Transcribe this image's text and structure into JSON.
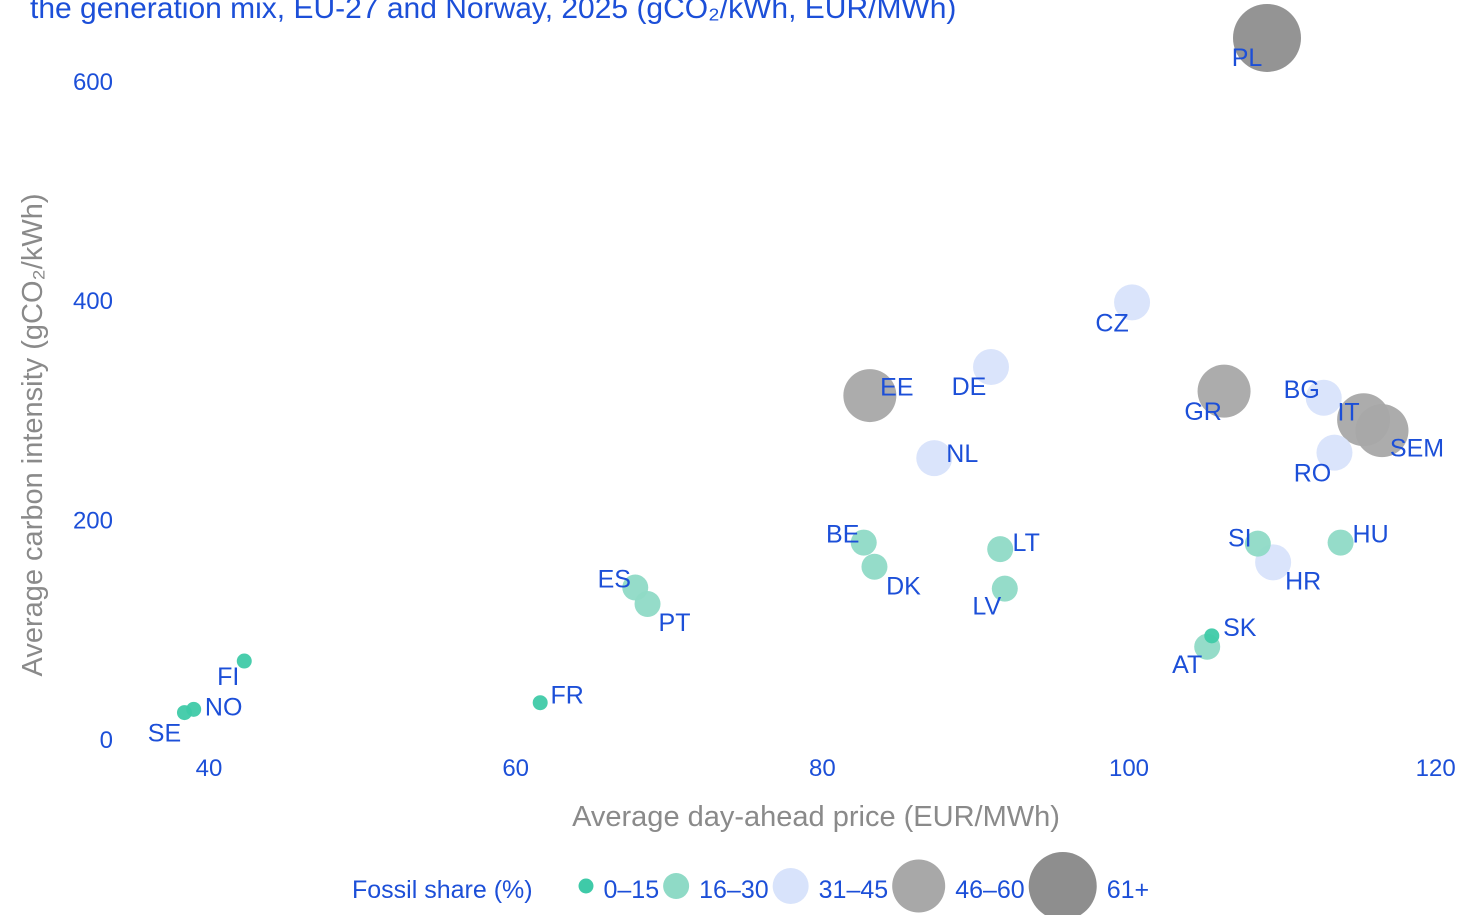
{
  "chart_data": {
    "type": "scatter",
    "title": "the generation mix, EU-27 and Norway, 2025 (gCO₂/kWh, EUR/MWh)",
    "x_label": "Average day-ahead price (EUR/MWh)",
    "y_label": "Average carbon intensity (gCO₂/kWh)",
    "legend_title": "Fossil share (%)",
    "xlim": [
      34,
      121
    ],
    "ylim": [
      -10,
      660
    ],
    "xticks": [
      40,
      60,
      80,
      100,
      120
    ],
    "yticks": [
      0,
      200,
      400,
      600
    ],
    "series": [
      {
        "name": "0–15",
        "color": "#3fcaa8",
        "labels": [
          "FI",
          "NO",
          "SE",
          "FR",
          "SK"
        ],
        "x": [
          42.3,
          39.0,
          38.4,
          61.6,
          105.4
        ],
        "values": [
          72,
          28,
          25,
          34,
          95
        ]
      },
      {
        "name": "16–30",
        "color": "#8fdac6",
        "labels": [
          "ES",
          "PT",
          "BE",
          "DK",
          "LT",
          "LV",
          "AT",
          "SI",
          "HU"
        ],
        "x": [
          67.8,
          68.6,
          82.7,
          83.4,
          91.6,
          91.9,
          105.1,
          108.4,
          113.8
        ],
        "values": [
          139,
          124,
          180,
          158,
          174,
          138,
          85,
          179,
          180
        ]
      },
      {
        "name": "31–45",
        "color": "#d8e3fb",
        "labels": [
          "CZ",
          "DE",
          "NL",
          "BG",
          "RO",
          "HR"
        ],
        "x": [
          100.2,
          91.0,
          87.3,
          112.7,
          113.4,
          109.4
        ],
        "values": [
          399,
          340,
          257,
          312,
          262,
          162
        ]
      },
      {
        "name": "46–60",
        "color": "#a8a8a8",
        "labels": [
          "EE",
          "GR",
          "IT",
          "SEM"
        ],
        "x": [
          83.1,
          106.2,
          115.3,
          116.5
        ],
        "values": [
          314,
          318,
          292,
          282
        ]
      },
      {
        "name": "61+",
        "color": "#8e8e8e",
        "labels": [
          "PL"
        ],
        "x": [
          109.0
        ],
        "values": [
          640
        ]
      }
    ]
  }
}
